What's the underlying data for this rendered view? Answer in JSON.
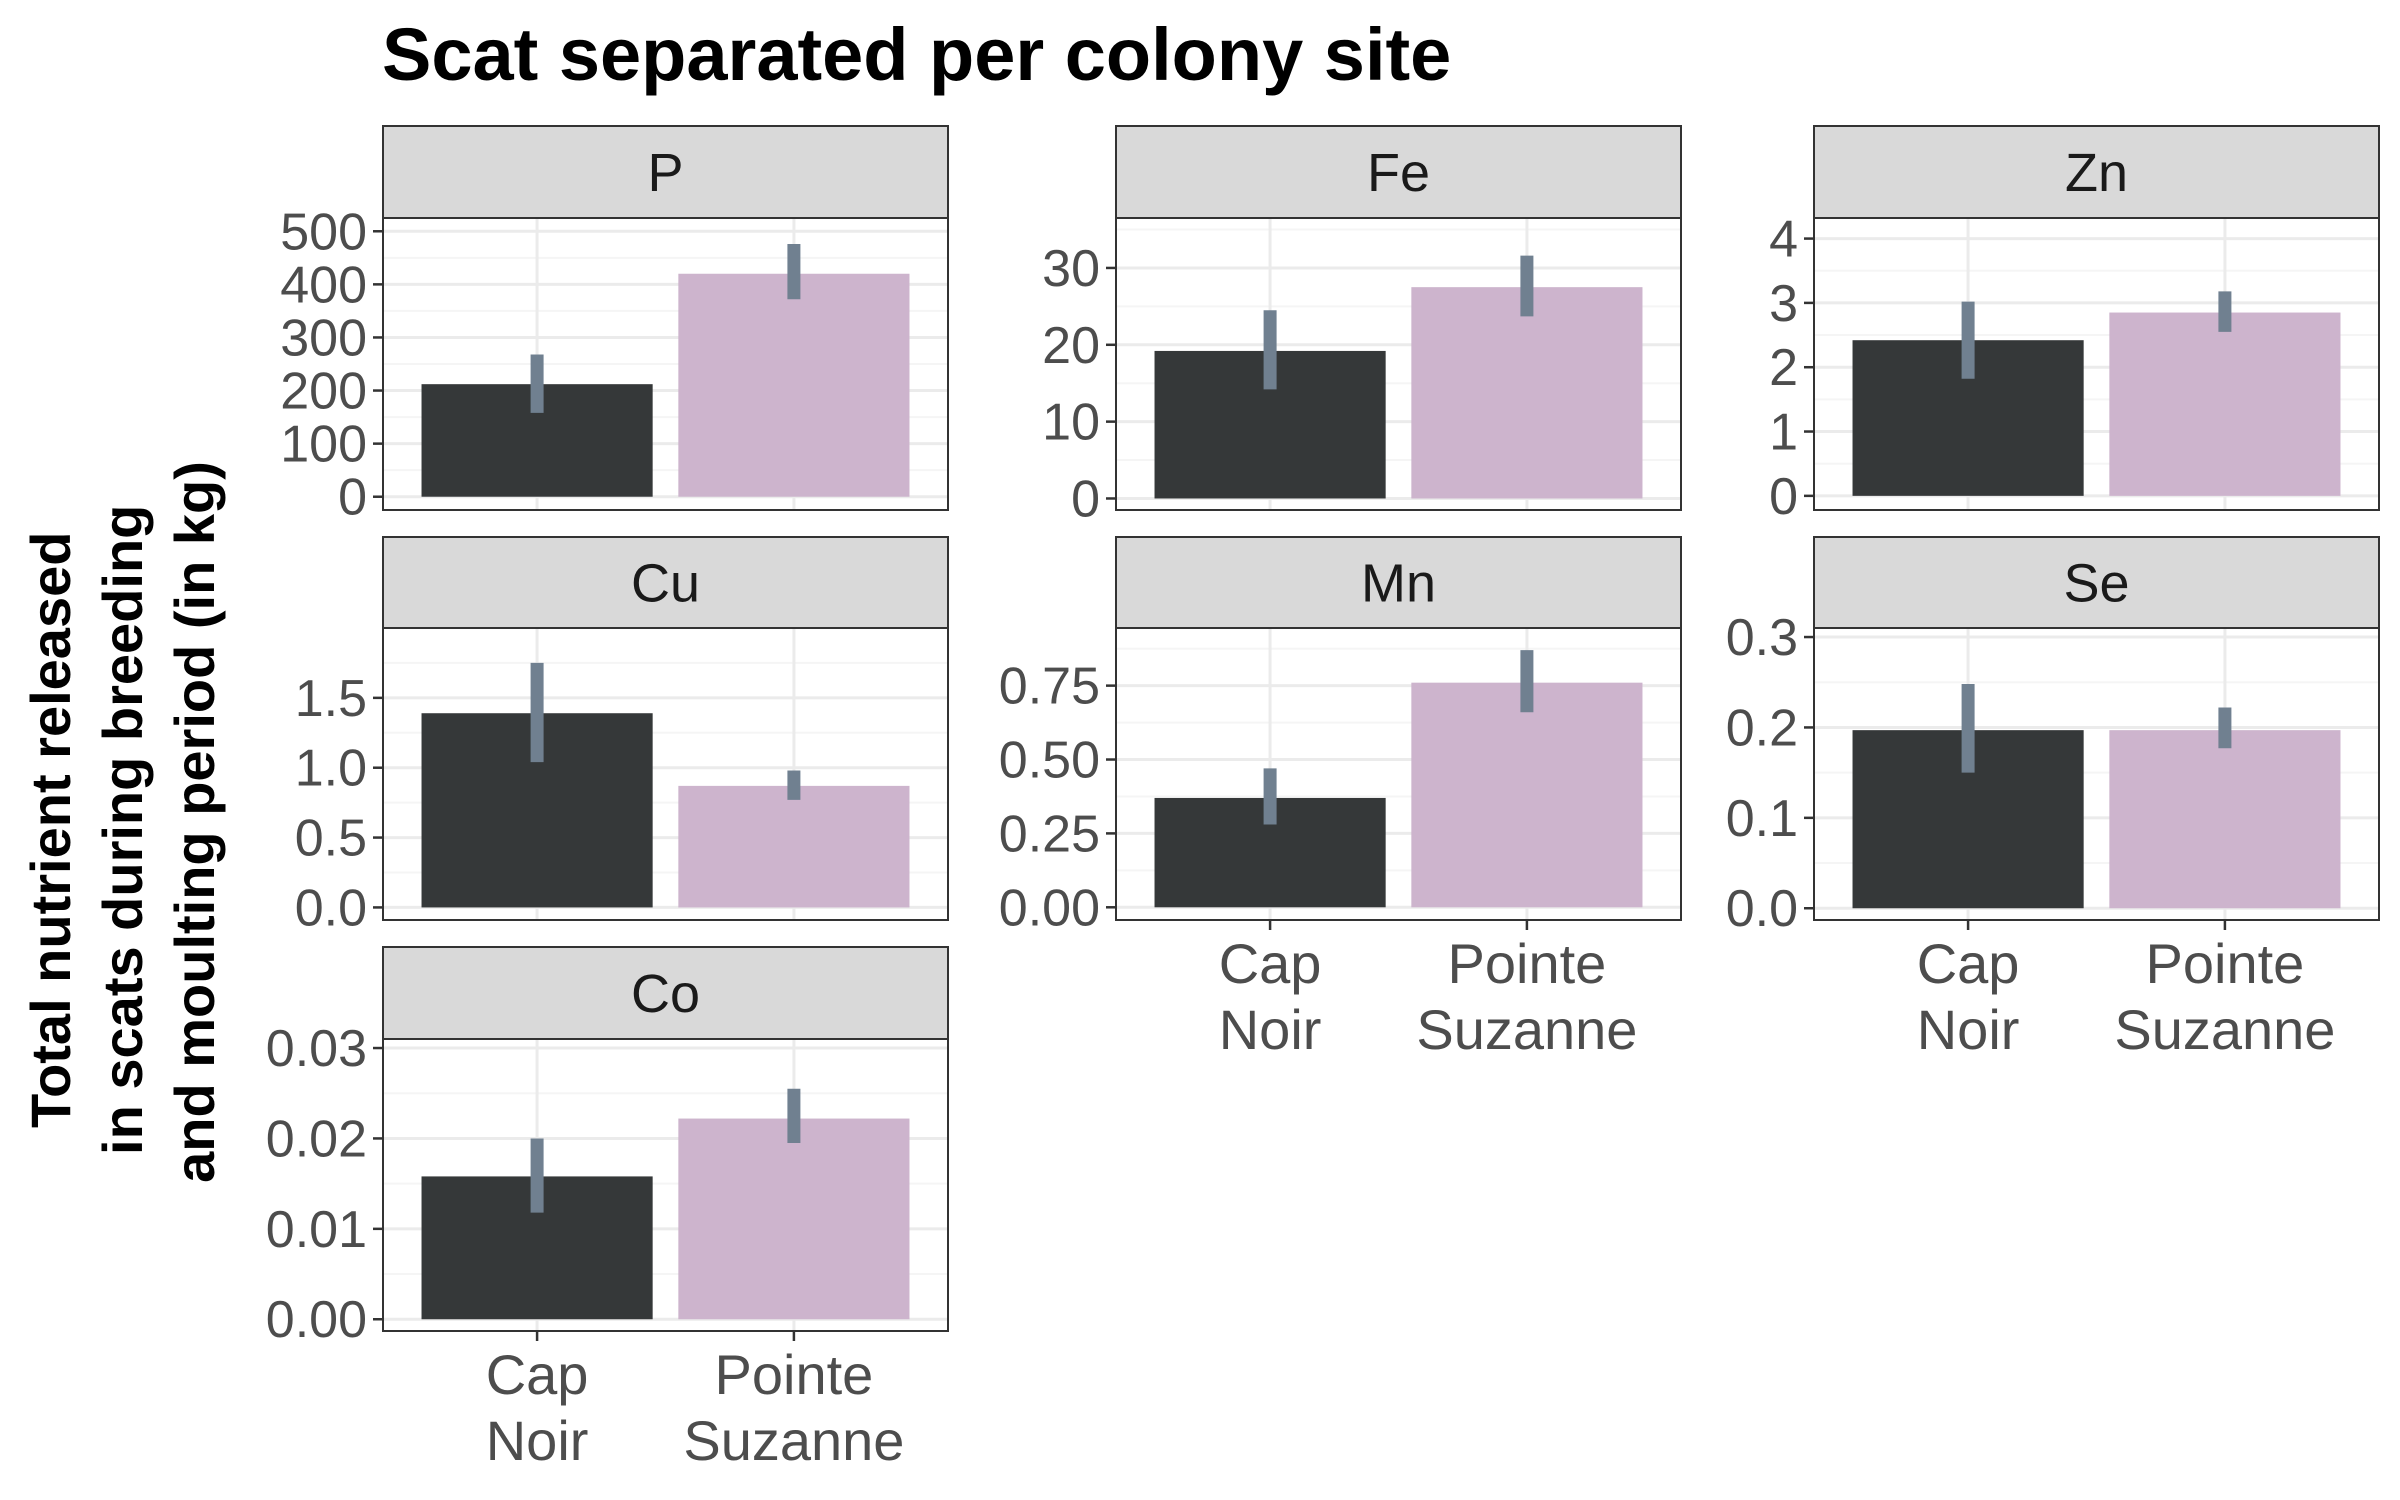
{
  "chart_data": {
    "type": "bar",
    "title": "Scat separated per colony site",
    "ylabel": "Total nutrient released in scats during breeding and moulting period (in kg)",
    "ylabel_lines": [
      "Total nutrient released",
      "in scats during breeding",
      "and moulting period (in kg)"
    ],
    "xlabel": "",
    "categories": [
      "Cap Noir",
      "Pointe Suzanne"
    ],
    "category_lines": [
      [
        "Cap",
        "Noir"
      ],
      [
        "Pointe",
        "Suzanne"
      ]
    ],
    "grid": true,
    "legend": "none",
    "colors": {
      "Cap Noir": "#353839",
      "Pointe Suzanne": "#cdb4cd",
      "error_bar": "#708090",
      "strip_fill": "#d9d9d9",
      "panel_border": "#333333",
      "grid_major": "#ebebeb",
      "grid_minor": "#f5f5f5"
    },
    "panels": [
      {
        "element": "P",
        "ylim": [
          -25,
          525
        ],
        "yticks": [
          0,
          100,
          200,
          300,
          400,
          500
        ],
        "ytick_labels": [
          "0",
          "100",
          "200",
          "300",
          "400",
          "500"
        ],
        "values": [
          212,
          420
        ],
        "error_low": [
          158,
          372
        ],
        "error_high": [
          268,
          476
        ]
      },
      {
        "element": "Fe",
        "ylim": [
          -1.5,
          36.5
        ],
        "yticks": [
          0,
          10,
          20,
          30
        ],
        "ytick_labels": [
          "0",
          "10",
          "20",
          "30"
        ],
        "values": [
          19.2,
          27.5
        ],
        "error_low": [
          14.2,
          23.7
        ],
        "error_high": [
          24.5,
          31.6
        ]
      },
      {
        "element": "Zn",
        "ylim": [
          -0.22,
          4.32
        ],
        "yticks": [
          0,
          1,
          2,
          3,
          4
        ],
        "ytick_labels": [
          "0",
          "1",
          "2",
          "3",
          "4"
        ],
        "values": [
          2.42,
          2.85
        ],
        "error_low": [
          1.82,
          2.55
        ],
        "error_high": [
          3.02,
          3.18
        ]
      },
      {
        "element": "Cu",
        "ylim": [
          -0.09,
          2.0
        ],
        "yticks": [
          0,
          0.5,
          1.0,
          1.5
        ],
        "ytick_labels": [
          "0.0",
          "0.5",
          "1.0",
          "1.5"
        ],
        "values": [
          1.39,
          0.87
        ],
        "error_low": [
          1.04,
          0.77
        ],
        "error_high": [
          1.75,
          0.98
        ]
      },
      {
        "element": "Mn",
        "ylim": [
          -0.043,
          0.945
        ],
        "yticks": [
          0,
          0.25,
          0.5,
          0.75
        ],
        "ytick_labels": [
          "0.00",
          "0.25",
          "0.50",
          "0.75"
        ],
        "values": [
          0.37,
          0.76
        ],
        "error_low": [
          0.28,
          0.66
        ],
        "error_high": [
          0.47,
          0.87
        ]
      },
      {
        "element": "Se",
        "ylim": [
          -0.013,
          0.31
        ],
        "yticks": [
          0,
          0.1,
          0.2,
          0.3
        ],
        "ytick_labels": [
          "0.0",
          "0.1",
          "0.2",
          "0.3"
        ],
        "values": [
          0.197,
          0.197
        ],
        "error_low": [
          0.15,
          0.177
        ],
        "error_high": [
          0.248,
          0.222
        ]
      },
      {
        "element": "Co",
        "ylim": [
          -0.0013,
          0.031
        ],
        "yticks": [
          0,
          0.01,
          0.02,
          0.03
        ],
        "ytick_labels": [
          "0.00",
          "0.01",
          "0.02",
          "0.03"
        ],
        "values": [
          0.0158,
          0.0222
        ],
        "error_low": [
          0.0118,
          0.0195
        ],
        "error_high": [
          0.02,
          0.0255
        ]
      }
    ]
  }
}
